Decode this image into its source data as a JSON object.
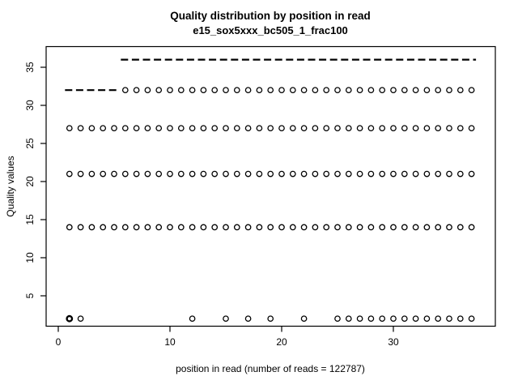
{
  "figure": {
    "background": "#ffffff",
    "foreground": "#000000"
  },
  "chart_data": {
    "type": "scatter",
    "title": "Quality distribution by position in read",
    "subtitle": "e15_sox5xxx_bc505_1_frac100",
    "xlabel": "position in read (number of reads = 122787)",
    "ylabel": "Quality values",
    "read_count": 122787,
    "max_position": 37,
    "grid": false,
    "legend_position": "none",
    "x_axis": {
      "ticks": [
        0,
        10,
        20,
        30
      ],
      "range": [
        -1.1,
        39.1
      ]
    },
    "y_axis": {
      "ticks": [
        5,
        10,
        15,
        20,
        25,
        30,
        35
      ],
      "range": [
        1.0,
        37.7
      ]
    },
    "marker": {
      "shape": "open-circle",
      "color": "#000000"
    },
    "median_segments": [
      {
        "quality": 32,
        "positions_from": 1,
        "positions_to": 5,
        "style": "dashed"
      },
      {
        "quality": 36,
        "positions_from": 6,
        "positions_to": 37,
        "style": "dashed"
      }
    ],
    "point_rows": [
      {
        "quality": 32,
        "positions": [
          6,
          7,
          8,
          9,
          10,
          11,
          12,
          13,
          14,
          15,
          16,
          17,
          18,
          19,
          20,
          21,
          22,
          23,
          24,
          25,
          26,
          27,
          28,
          29,
          30,
          31,
          32,
          33,
          34,
          35,
          36,
          37
        ]
      },
      {
        "quality": 27,
        "positions": [
          1,
          2,
          3,
          4,
          5,
          6,
          7,
          8,
          9,
          10,
          11,
          12,
          13,
          14,
          15,
          16,
          17,
          18,
          19,
          20,
          21,
          22,
          23,
          24,
          25,
          26,
          27,
          28,
          29,
          30,
          31,
          32,
          33,
          34,
          35,
          36,
          37
        ]
      },
      {
        "quality": 21,
        "positions": [
          1,
          2,
          3,
          4,
          5,
          6,
          7,
          8,
          9,
          10,
          11,
          12,
          13,
          14,
          15,
          16,
          17,
          18,
          19,
          20,
          21,
          22,
          23,
          24,
          25,
          26,
          27,
          28,
          29,
          30,
          31,
          32,
          33,
          34,
          35,
          36,
          37
        ]
      },
      {
        "quality": 14,
        "positions": [
          1,
          2,
          3,
          4,
          5,
          6,
          7,
          8,
          9,
          10,
          11,
          12,
          13,
          14,
          15,
          16,
          17,
          18,
          19,
          20,
          21,
          22,
          23,
          24,
          25,
          26,
          27,
          28,
          29,
          30,
          31,
          32,
          33,
          34,
          35,
          36,
          37
        ]
      },
      {
        "quality": 2,
        "positions": [
          1,
          2,
          12,
          15,
          17,
          19,
          22,
          25,
          26,
          27,
          28,
          29,
          30,
          31,
          32,
          33,
          34,
          35,
          36,
          37
        ],
        "bold_positions": [
          1
        ]
      }
    ]
  }
}
